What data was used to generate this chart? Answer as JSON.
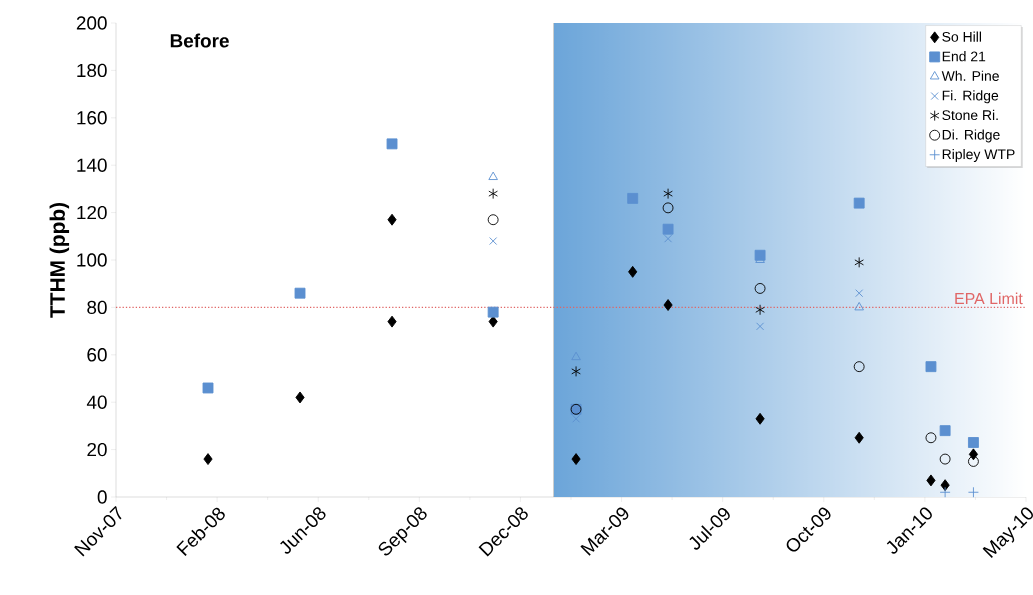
{
  "chart_data": {
    "type": "scatter",
    "ylabel": "TTHM (ppb)",
    "annotations": [
      "Before"
    ],
    "xlim": [
      "2007-11-15",
      "2010-05-03"
    ],
    "xticks": [
      {
        "value": "2007-11-15",
        "label": "Nov-07"
      },
      {
        "value": "2008-02-23",
        "label": "Feb-08"
      },
      {
        "value": "2008-06-02",
        "label": "Jun-08"
      },
      {
        "value": "2008-09-10",
        "label": "Sep-08"
      },
      {
        "value": "2008-12-19",
        "label": "Dec-08"
      },
      {
        "value": "2009-03-29",
        "label": "Mar-09"
      },
      {
        "value": "2009-07-07",
        "label": "Jul-09"
      },
      {
        "value": "2009-10-15",
        "label": "Oct-09"
      },
      {
        "value": "2010-01-23",
        "label": "Jan-10"
      },
      {
        "value": "2010-05-03",
        "label": "May-10"
      }
    ],
    "ylim": [
      0,
      200
    ],
    "yticks": [
      0,
      20,
      40,
      60,
      80,
      100,
      120,
      140,
      160,
      180,
      200
    ],
    "legend": "top right",
    "ref_lines": [
      {
        "axis": "y",
        "value": 80,
        "label": "EPA Limit",
        "color": "#e06666",
        "line_style": "dotted"
      }
    ],
    "bands": [
      {
        "axis": "x",
        "from": "2009-01-21",
        "to": "2010-05-03",
        "color": "#5b9bd5"
      }
    ],
    "series": [
      {
        "name": "So Hill",
        "color": "#000000",
        "marker": "diamond",
        "x": [
          "2008-02-14",
          "2008-05-15",
          "2008-08-14",
          "2008-08-14",
          "2008-11-22",
          "2009-02-12",
          "2009-04-09",
          "2009-05-14",
          "2009-08-13",
          "2009-11-19",
          "2010-01-29",
          "2010-02-12",
          "2010-03-12"
        ],
        "values": [
          16,
          42,
          117,
          74,
          74,
          16,
          95,
          81,
          33,
          25,
          7,
          5,
          18
        ]
      },
      {
        "name": "End 21",
        "color": "#5b8fd0",
        "marker": "square",
        "x": [
          "2008-02-14",
          "2008-05-15",
          "2008-08-14",
          "2008-11-22",
          "2009-02-12",
          "2009-04-09",
          "2009-05-14",
          "2009-08-13",
          "2009-11-19",
          "2010-01-29",
          "2010-02-12",
          "2010-03-12"
        ],
        "values": [
          46,
          86,
          149,
          78,
          37,
          126,
          113,
          102,
          124,
          55,
          28,
          23
        ]
      },
      {
        "name": "Wh. Pine",
        "color": "#5b8fd0",
        "marker": "triangle",
        "x": [
          "2008-11-22",
          "2009-02-12",
          "2009-08-13",
          "2009-11-19"
        ],
        "values": [
          135,
          59,
          100,
          80
        ]
      },
      {
        "name": "Fi. Ridge",
        "color": "#5b8fd0",
        "marker": "cross",
        "x": [
          "2008-11-22",
          "2009-02-12",
          "2009-05-14",
          "2009-08-13",
          "2009-11-19"
        ],
        "values": [
          108,
          33,
          109,
          72,
          86
        ]
      },
      {
        "name": "Stone Ri.",
        "color": "#000000",
        "x": [
          "2008-11-22",
          "2009-02-12",
          "2009-05-14",
          "2009-08-13",
          "2009-11-19"
        ],
        "values": [
          128,
          53,
          128,
          79,
          99
        ]
      },
      {
        "name": "Di. Ridge",
        "color": "#000000",
        "marker": "circle",
        "x": [
          "2008-11-22",
          "2009-02-12",
          "2009-05-14",
          "2009-08-13",
          "2009-11-19",
          "2010-01-29",
          "2010-02-12",
          "2010-03-12"
        ],
        "values": [
          117,
          37,
          122,
          88,
          55,
          25,
          16,
          15
        ]
      },
      {
        "name": "Ripley WTP",
        "color": "#5b8fd0",
        "marker": "plus",
        "x": [
          "2010-02-12",
          "2010-03-12"
        ],
        "values": [
          2,
          2
        ]
      }
    ]
  }
}
